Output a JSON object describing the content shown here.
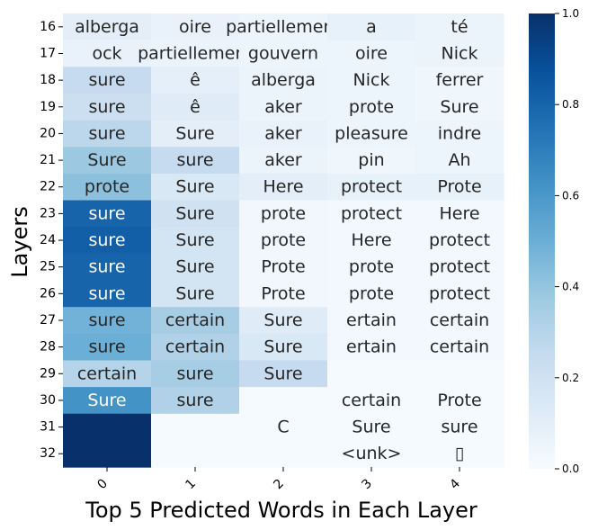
{
  "chart_data": {
    "type": "heatmap",
    "xlabel": "Top 5 Predicted Words in Each Layer",
    "ylabel": "Layers",
    "x_ticks": [
      "0",
      "1",
      "2",
      "3",
      "4"
    ],
    "y_ticks": [
      "16",
      "17",
      "18",
      "19",
      "20",
      "21",
      "22",
      "23",
      "24",
      "25",
      "26",
      "27",
      "28",
      "29",
      "30",
      "31",
      "32"
    ],
    "cells": [
      [
        "alberga",
        "oire",
        "partiellement",
        "a",
        "té"
      ],
      [
        "ock",
        "partiellement",
        "gouvern",
        "oire",
        "Nick"
      ],
      [
        "sure",
        "ê",
        "alberga",
        "Nick",
        "ferrer"
      ],
      [
        "sure",
        "ê",
        "aker",
        "prote",
        "Sure"
      ],
      [
        "sure",
        "Sure",
        "aker",
        "pleasure",
        "indre"
      ],
      [
        "Sure",
        "sure",
        "aker",
        "pin",
        "Ah"
      ],
      [
        "prote",
        "Sure",
        "Here",
        "protect",
        "Prote"
      ],
      [
        "sure",
        "Sure",
        "prote",
        "protect",
        "Here"
      ],
      [
        "sure",
        "Sure",
        "prote",
        "Here",
        "protect"
      ],
      [
        "sure",
        "Sure",
        "Prote",
        "prote",
        "protect"
      ],
      [
        "sure",
        "Sure",
        "Prote",
        "prote",
        "protect"
      ],
      [
        "sure",
        "certain",
        "Sure",
        "ertain",
        "certain"
      ],
      [
        "sure",
        "certain",
        "Sure",
        "ertain",
        "certain"
      ],
      [
        "certain",
        "sure",
        "Sure",
        "",
        ""
      ],
      [
        "Sure",
        "sure",
        "",
        "certain",
        "Prote"
      ],
      [
        "",
        "",
        "C",
        "Sure",
        "sure"
      ],
      [
        "",
        "",
        "",
        "<unk>",
        "▯"
      ]
    ],
    "values": [
      [
        0.1,
        0.07,
        0.05,
        0.08,
        0.06
      ],
      [
        0.07,
        0.06,
        0.05,
        0.05,
        0.06
      ],
      [
        0.25,
        0.09,
        0.06,
        0.05,
        0.04
      ],
      [
        0.22,
        0.12,
        0.06,
        0.05,
        0.04
      ],
      [
        0.28,
        0.1,
        0.07,
        0.05,
        0.05
      ],
      [
        0.38,
        0.25,
        0.06,
        0.04,
        0.05
      ],
      [
        0.42,
        0.15,
        0.1,
        0.08,
        0.08
      ],
      [
        0.8,
        0.2,
        0.03,
        0.02,
        0.02
      ],
      [
        0.82,
        0.18,
        0.03,
        0.02,
        0.02
      ],
      [
        0.8,
        0.18,
        0.03,
        0.02,
        0.02
      ],
      [
        0.8,
        0.18,
        0.03,
        0.02,
        0.02
      ],
      [
        0.48,
        0.35,
        0.12,
        0.02,
        0.02
      ],
      [
        0.5,
        0.32,
        0.15,
        0.02,
        0.02
      ],
      [
        0.3,
        0.35,
        0.25,
        0.01,
        0.01
      ],
      [
        0.62,
        0.32,
        0.01,
        0.01,
        0.01
      ],
      [
        1.0,
        0.01,
        0.01,
        0.01,
        0.01
      ],
      [
        1.0,
        0.01,
        0.01,
        0.01,
        0.01
      ]
    ],
    "colorbar": {
      "colormap": "Blues",
      "range": [
        0.0,
        1.0
      ],
      "ticks": [
        "0.0",
        "0.2",
        "0.4",
        "0.6",
        "0.8",
        "1.0"
      ]
    }
  }
}
